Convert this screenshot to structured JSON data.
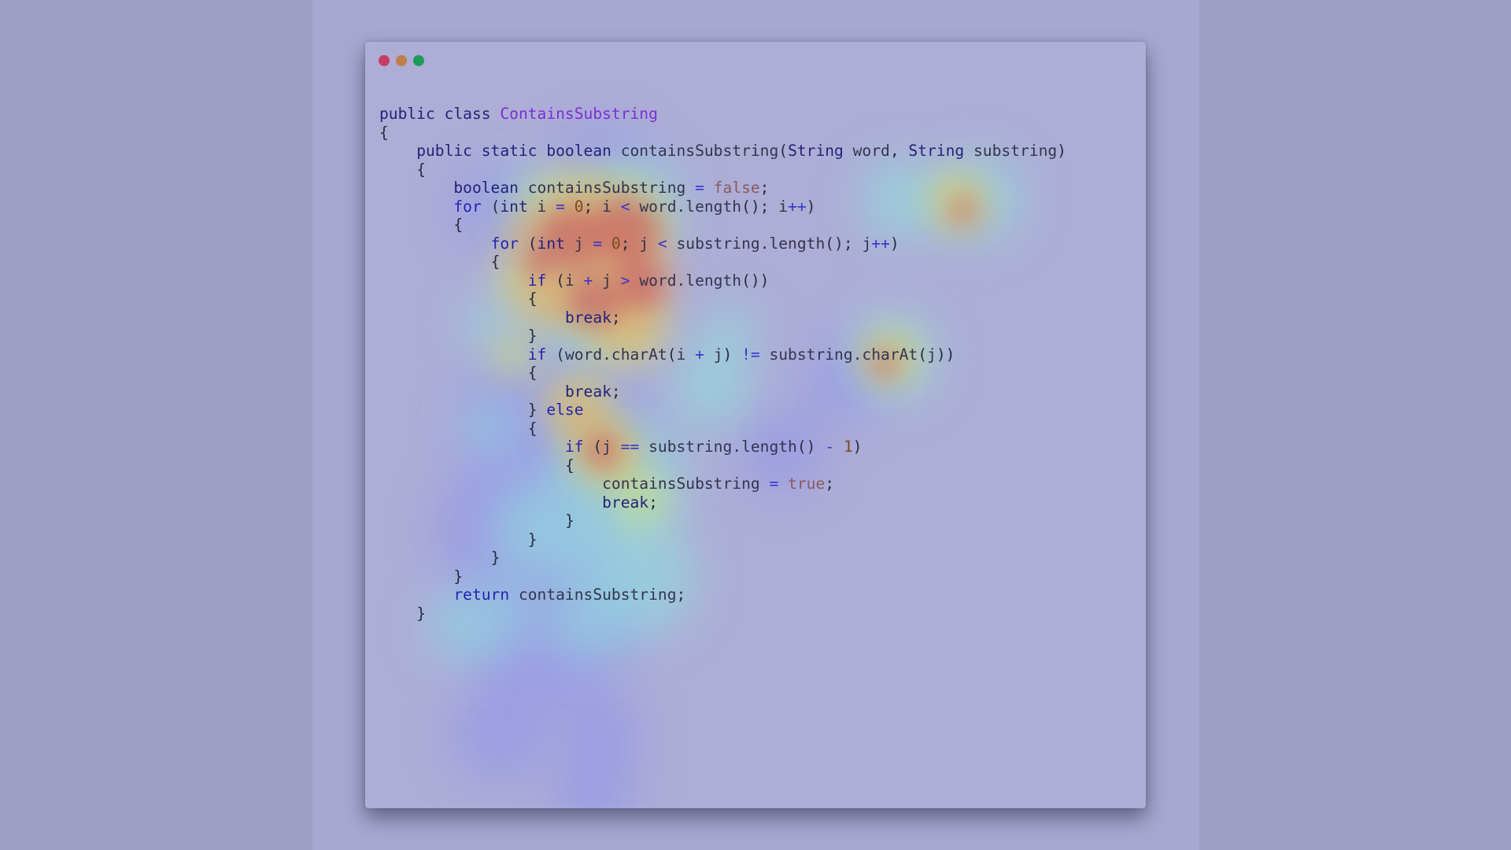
{
  "window": {
    "controls": [
      {
        "name": "close",
        "color": "#c93c63"
      },
      {
        "name": "minimize",
        "color": "#c07f48"
      },
      {
        "name": "maximize",
        "color": "#1e9a5a"
      }
    ]
  },
  "code": {
    "language": "java",
    "lines": [
      [
        {
          "t": "kw",
          "v": "public class "
        },
        {
          "t": "cls",
          "v": "ContainsSubstring"
        }
      ],
      [
        {
          "t": "pun",
          "v": "{"
        }
      ],
      [
        {
          "t": "sp",
          "v": "    "
        },
        {
          "t": "kw",
          "v": "public static boolean "
        },
        {
          "t": "id",
          "v": "containsSubstring"
        },
        {
          "t": "pun",
          "v": "("
        },
        {
          "t": "kw",
          "v": "String "
        },
        {
          "t": "id",
          "v": "word"
        },
        {
          "t": "pun",
          "v": ", "
        },
        {
          "t": "kw",
          "v": "String "
        },
        {
          "t": "id",
          "v": "substring"
        },
        {
          "t": "pun",
          "v": ")"
        }
      ],
      [
        {
          "t": "sp",
          "v": "    "
        },
        {
          "t": "pun",
          "v": "{"
        }
      ],
      [
        {
          "t": "sp",
          "v": "        "
        },
        {
          "t": "kw",
          "v": "boolean "
        },
        {
          "t": "id",
          "v": "containsSubstring"
        },
        {
          "t": "op",
          "v": " = "
        },
        {
          "t": "lit",
          "v": "false"
        },
        {
          "t": "pun",
          "v": ";"
        }
      ],
      [
        {
          "t": "sp",
          "v": "        "
        },
        {
          "t": "ctl",
          "v": "for "
        },
        {
          "t": "pun",
          "v": "("
        },
        {
          "t": "kw",
          "v": "int "
        },
        {
          "t": "id",
          "v": "i"
        },
        {
          "t": "op",
          "v": " = "
        },
        {
          "t": "num",
          "v": "0"
        },
        {
          "t": "pun",
          "v": "; "
        },
        {
          "t": "id",
          "v": "i"
        },
        {
          "t": "op",
          "v": " < "
        },
        {
          "t": "id",
          "v": "word.length"
        },
        {
          "t": "pun",
          "v": "(); "
        },
        {
          "t": "id",
          "v": "i"
        },
        {
          "t": "op",
          "v": "++"
        },
        {
          "t": "pun",
          "v": ")"
        }
      ],
      [
        {
          "t": "sp",
          "v": "        "
        },
        {
          "t": "pun",
          "v": "{"
        }
      ],
      [
        {
          "t": "sp",
          "v": "            "
        },
        {
          "t": "ctl",
          "v": "for "
        },
        {
          "t": "pun",
          "v": "("
        },
        {
          "t": "kw",
          "v": "int "
        },
        {
          "t": "id",
          "v": "j"
        },
        {
          "t": "op",
          "v": " = "
        },
        {
          "t": "num",
          "v": "0"
        },
        {
          "t": "pun",
          "v": "; "
        },
        {
          "t": "id",
          "v": "j"
        },
        {
          "t": "op",
          "v": " < "
        },
        {
          "t": "id",
          "v": "substring.length"
        },
        {
          "t": "pun",
          "v": "(); "
        },
        {
          "t": "id",
          "v": "j"
        },
        {
          "t": "op",
          "v": "++"
        },
        {
          "t": "pun",
          "v": ")"
        }
      ],
      [
        {
          "t": "sp",
          "v": "            "
        },
        {
          "t": "pun",
          "v": "{"
        }
      ],
      [
        {
          "t": "sp",
          "v": "                "
        },
        {
          "t": "ctl",
          "v": "if "
        },
        {
          "t": "pun",
          "v": "("
        },
        {
          "t": "id",
          "v": "i"
        },
        {
          "t": "op",
          "v": " + "
        },
        {
          "t": "id",
          "v": "j"
        },
        {
          "t": "op",
          "v": " > "
        },
        {
          "t": "id",
          "v": "word.length"
        },
        {
          "t": "pun",
          "v": "())"
        }
      ],
      [
        {
          "t": "sp",
          "v": "                "
        },
        {
          "t": "pun",
          "v": "{"
        }
      ],
      [
        {
          "t": "sp",
          "v": "                    "
        },
        {
          "t": "kw",
          "v": "break"
        },
        {
          "t": "pun",
          "v": ";"
        }
      ],
      [
        {
          "t": "sp",
          "v": "                "
        },
        {
          "t": "pun",
          "v": "}"
        }
      ],
      [
        {
          "t": "sp",
          "v": "                "
        },
        {
          "t": "ctl",
          "v": "if "
        },
        {
          "t": "pun",
          "v": "("
        },
        {
          "t": "id",
          "v": "word.charAt"
        },
        {
          "t": "pun",
          "v": "("
        },
        {
          "t": "id",
          "v": "i"
        },
        {
          "t": "op",
          "v": " + "
        },
        {
          "t": "id",
          "v": "j"
        },
        {
          "t": "pun",
          "v": ")"
        },
        {
          "t": "op",
          "v": " != "
        },
        {
          "t": "id",
          "v": "substring.charAt"
        },
        {
          "t": "pun",
          "v": "("
        },
        {
          "t": "id",
          "v": "j"
        },
        {
          "t": "pun",
          "v": "))"
        }
      ],
      [
        {
          "t": "sp",
          "v": "                "
        },
        {
          "t": "pun",
          "v": "{"
        }
      ],
      [
        {
          "t": "sp",
          "v": "                    "
        },
        {
          "t": "kw",
          "v": "break"
        },
        {
          "t": "pun",
          "v": ";"
        }
      ],
      [
        {
          "t": "sp",
          "v": "                "
        },
        {
          "t": "pun",
          "v": "} "
        },
        {
          "t": "ctl",
          "v": "else"
        }
      ],
      [
        {
          "t": "sp",
          "v": "                "
        },
        {
          "t": "pun",
          "v": "{"
        }
      ],
      [
        {
          "t": "sp",
          "v": "                    "
        },
        {
          "t": "ctl",
          "v": "if "
        },
        {
          "t": "pun",
          "v": "("
        },
        {
          "t": "id",
          "v": "j"
        },
        {
          "t": "op",
          "v": " == "
        },
        {
          "t": "id",
          "v": "substring.length"
        },
        {
          "t": "pun",
          "v": "()"
        },
        {
          "t": "op",
          "v": " - "
        },
        {
          "t": "num",
          "v": "1"
        },
        {
          "t": "pun",
          "v": ")"
        }
      ],
      [
        {
          "t": "sp",
          "v": "                    "
        },
        {
          "t": "pun",
          "v": "{"
        }
      ],
      [
        {
          "t": "sp",
          "v": "                        "
        },
        {
          "t": "id",
          "v": "containsSubstring"
        },
        {
          "t": "op",
          "v": " = "
        },
        {
          "t": "lit",
          "v": "true"
        },
        {
          "t": "pun",
          "v": ";"
        }
      ],
      [
        {
          "t": "sp",
          "v": "                        "
        },
        {
          "t": "kw",
          "v": "break"
        },
        {
          "t": "pun",
          "v": ";"
        }
      ],
      [
        {
          "t": "sp",
          "v": "                    "
        },
        {
          "t": "pun",
          "v": "}"
        }
      ],
      [
        {
          "t": "sp",
          "v": "                "
        },
        {
          "t": "pun",
          "v": "}"
        }
      ],
      [
        {
          "t": "sp",
          "v": "            "
        },
        {
          "t": "pun",
          "v": "}"
        }
      ],
      [
        {
          "t": "sp",
          "v": "        "
        },
        {
          "t": "pun",
          "v": "}"
        }
      ],
      [
        {
          "t": "sp",
          "v": "        "
        },
        {
          "t": "ctl",
          "v": "return "
        },
        {
          "t": "id",
          "v": "containsSubstring"
        },
        {
          "t": "pun",
          "v": ";"
        }
      ],
      [
        {
          "t": "sp",
          "v": "    "
        },
        {
          "t": "pun",
          "v": "}"
        }
      ]
    ]
  },
  "heatmap": {
    "overlay": "gaze-attention",
    "colors": {
      "hot": "#c4415a",
      "warm": "#e9a35a",
      "mid": "#d9e46e",
      "cool": "#8fe3dd",
      "cold": "#8f8ff0"
    }
  }
}
